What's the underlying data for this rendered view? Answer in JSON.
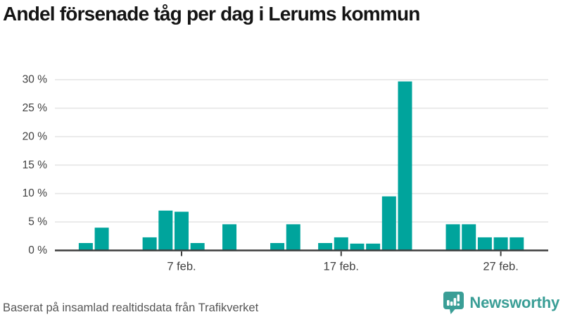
{
  "title": "Andel försenade tåg per dag i Lerums kommun",
  "footer": {
    "source_text": "Baserat på insamlad realtidsdata från Trafikverket",
    "brand_name": "Newsworthy"
  },
  "colors": {
    "bar": "#00a49c",
    "grid": "#e6e6e6",
    "axis": "#3d3d3d",
    "tick_text": "#404040",
    "title_text": "#141414",
    "footer_text": "#565656",
    "brand_teal": "#3a9e96"
  },
  "icons": {
    "brand_icon": "newsworthy-speech-bubble-bar-chart-icon"
  },
  "chart_data": {
    "type": "bar",
    "title": "Andel försenade tåg per dag i Lerums kommun",
    "xlabel": "",
    "ylabel": "",
    "unit": "%",
    "ylim": [
      0,
      30
    ],
    "yticks": [
      0,
      5,
      10,
      15,
      20,
      25,
      30
    ],
    "ytick_labels": [
      "0 %",
      "5 %",
      "10 %",
      "15 %",
      "20 %",
      "25 %",
      "30 %"
    ],
    "grid": "horizontal",
    "legend_position": "none",
    "categories": [
      "1 feb.",
      "2 feb.",
      "3 feb.",
      "4 feb.",
      "5 feb.",
      "6 feb.",
      "7 feb.",
      "8 feb.",
      "9 feb.",
      "10 feb.",
      "11 feb.",
      "12 feb.",
      "13 feb.",
      "14 feb.",
      "15 feb.",
      "16 feb.",
      "17 feb.",
      "18 feb.",
      "19 feb.",
      "20 feb.",
      "21 feb.",
      "22 feb.",
      "23 feb.",
      "24 feb.",
      "25 feb.",
      "26 feb.",
      "27 feb.",
      "28 feb.",
      "29 feb."
    ],
    "values": [
      1.3,
      4.0,
      0,
      0,
      2.3,
      7.0,
      6.8,
      1.3,
      0,
      4.6,
      0,
      0,
      1.3,
      4.6,
      0,
      1.3,
      2.3,
      1.2,
      1.2,
      9.5,
      29.7,
      0,
      0,
      4.6,
      4.6,
      2.3,
      2.3,
      2.3,
      0
    ],
    "xticks": [
      {
        "index": 6,
        "label": "7 feb."
      },
      {
        "index": 16,
        "label": "17 feb."
      },
      {
        "index": 26,
        "label": "27 feb."
      }
    ]
  }
}
